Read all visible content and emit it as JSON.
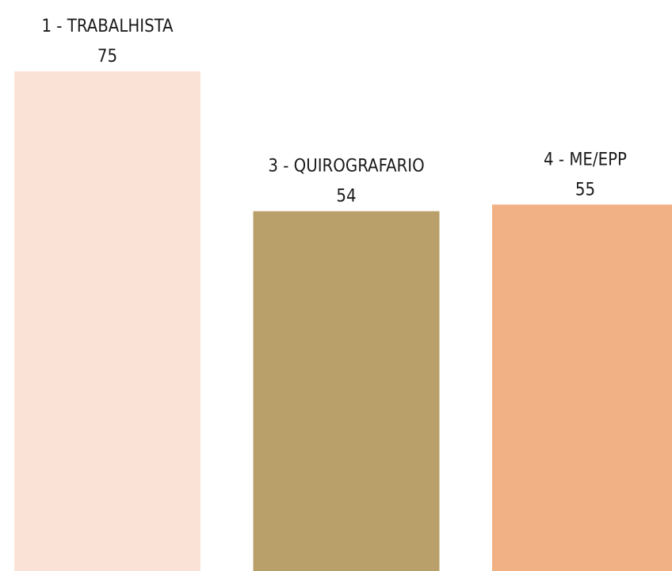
{
  "chart_data": {
    "type": "bar",
    "categories": [
      "1 - TRABALHISTA",
      "3 - QUIROGRAFARIO",
      "4 - ME/EPP"
    ],
    "values": [
      75,
      54,
      55
    ],
    "colors": [
      "#fae3d6",
      "#b9a06a",
      "#f2b185"
    ]
  }
}
